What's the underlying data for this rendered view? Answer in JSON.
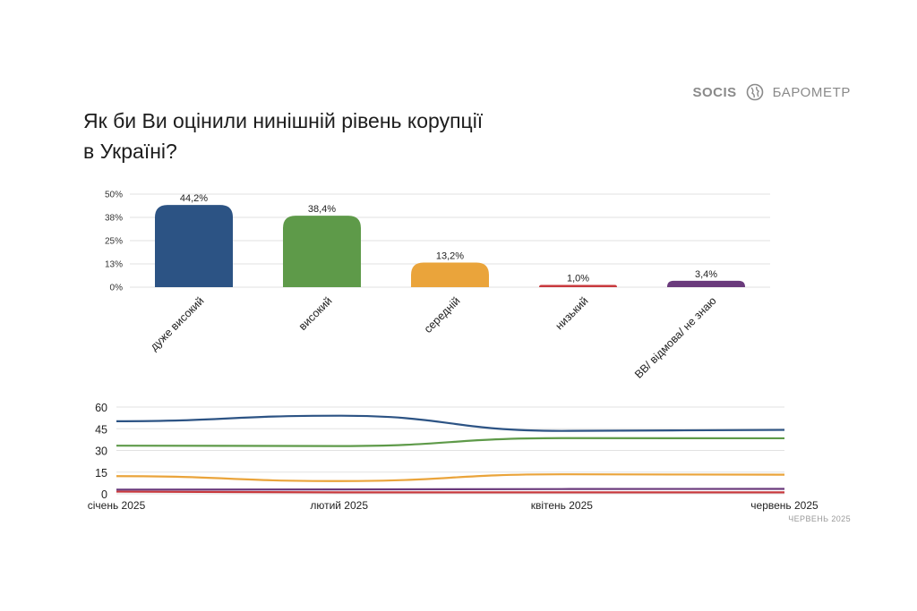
{
  "brand": {
    "logo": "SOCIS",
    "name": "БАРОМЕТР"
  },
  "title": [
    "Як би Ви оцінили нинішній рівень корупції",
    "в Україні?"
  ],
  "footer_date": "ЧЕРВЕНЬ 2025",
  "chart_data": [
    {
      "type": "bar",
      "categories": [
        "дуже високий",
        "високий",
        "середній",
        "низький",
        "ВВ/ відмова/ не знаю"
      ],
      "values": [
        44.2,
        38.4,
        13.2,
        1.0,
        3.4
      ],
      "value_labels": [
        "44,2%",
        "38,4%",
        "13,2%",
        "1,0%",
        "3,4%"
      ],
      "colors": [
        "#2c5384",
        "#5e9a49",
        "#eaa43b",
        "#c8393d",
        "#6a3a7c"
      ],
      "yticks": [
        "0%",
        "13%",
        "25%",
        "38%",
        "50%"
      ],
      "ylim": [
        0,
        50
      ],
      "grid": true
    },
    {
      "type": "line",
      "x": [
        "січень 2025",
        "лютий 2025",
        "квітень 2025",
        "червень 2025"
      ],
      "series": [
        {
          "values": [
            50.2,
            54.0,
            43.5,
            44.2
          ],
          "color": "#2c5384"
        },
        {
          "values": [
            33.3,
            33.0,
            38.5,
            38.4
          ],
          "color": "#5e9a49"
        },
        {
          "values": [
            12.2,
            8.8,
            13.5,
            13.2
          ],
          "color": "#eaa43b"
        },
        {
          "values": [
            2.9,
            3.0,
            3.3,
            3.4
          ],
          "color": "#6a3a7c"
        },
        {
          "values": [
            1.5,
            1.0,
            1.0,
            1.0
          ],
          "color": "#c8393d"
        }
      ],
      "yticks": [
        "0",
        "15",
        "30",
        "45",
        "60"
      ],
      "ylim": [
        0,
        60
      ],
      "grid": true
    }
  ]
}
